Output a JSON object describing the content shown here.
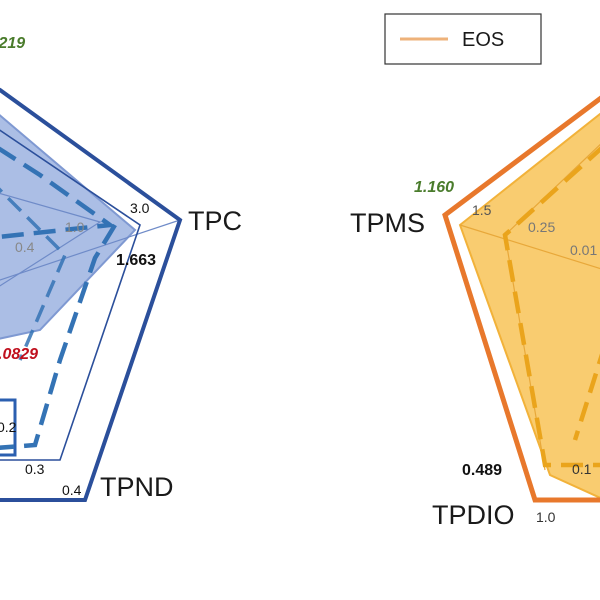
{
  "chart_data": {
    "type": "radar",
    "legend": {
      "placement": "top-right",
      "entries": [
        {
          "label": "EOS",
          "color": "#eeb27a"
        }
      ]
    },
    "panels": [
      {
        "side": "left",
        "colors": {
          "frame": "#2b4f9b",
          "fill": "#8fa8dc",
          "dashed": "#3473b5"
        },
        "axes": [
          {
            "name": "TPC",
            "ticks": [
              "1.0",
              "3.0"
            ]
          },
          {
            "name": "TPND",
            "ticks": [
              "0.2",
              "0.3",
              "0.4"
            ]
          }
        ],
        "inner_ticks": [
          "0.4"
        ],
        "annotations": [
          {
            "text": "1.663",
            "color": "#111111"
          },
          {
            "text": ".0829",
            "color": "#c0101e"
          },
          {
            "text": ".219",
            "color": "#4a7c2c"
          }
        ]
      },
      {
        "side": "right",
        "colors": {
          "frame": "#e8782c",
          "fill": "#f8c660",
          "dashed": "#eaa41c"
        },
        "axes": [
          {
            "name": "TPMS",
            "ticks": [
              "1.5",
              "0.25"
            ]
          },
          {
            "name": "TPDIO",
            "ticks": [
              "1.0"
            ]
          }
        ],
        "inner_ticks": [
          "0.01",
          "0.1"
        ],
        "annotations": [
          {
            "text": "1.160",
            "color": "#4a7c2c"
          },
          {
            "text": "0.489",
            "color": "#111111"
          }
        ]
      }
    ]
  }
}
